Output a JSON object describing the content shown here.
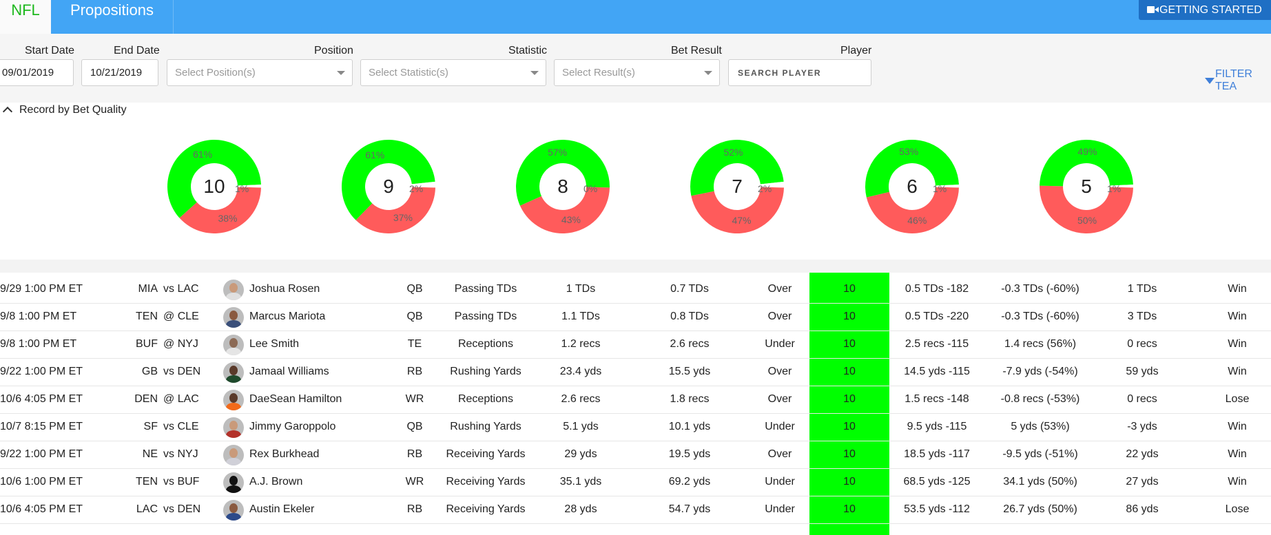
{
  "nav": {
    "tabs": [
      {
        "label": "NFL"
      },
      {
        "label": "Propositions"
      }
    ],
    "getting_started": "GETTING STARTED"
  },
  "filters": {
    "start_date": {
      "label": "Start Date",
      "value": "09/01/2019"
    },
    "end_date": {
      "label": "End Date",
      "value": "10/21/2019"
    },
    "position": {
      "label": "Position",
      "placeholder": "Select Position(s)"
    },
    "statistic": {
      "label": "Statistic",
      "placeholder": "Select Statistic(s)"
    },
    "bet_result": {
      "label": "Bet Result",
      "placeholder": "Select Result(s)"
    },
    "player": {
      "label": "Player",
      "placeholder": "SEARCH PLAYER"
    },
    "filter_team": "FILTER TEA"
  },
  "record": {
    "title": "Record by Bet Quality",
    "colors": {
      "win": "#00ff00",
      "lose": "#ff5b5b",
      "push": "#ffffff"
    },
    "charts": [
      {
        "quality": "10",
        "win": 61,
        "lose": 38,
        "push": 1,
        "win_label": "61%",
        "lose_label": "38%",
        "push_label": "1%"
      },
      {
        "quality": "9",
        "win": 61,
        "lose": 37,
        "push": 2,
        "win_label": "61%",
        "lose_label": "37%",
        "push_label": "2%"
      },
      {
        "quality": "8",
        "win": 57,
        "lose": 43,
        "push": 0,
        "win_label": "57%",
        "lose_label": "43%",
        "push_label": "0%"
      },
      {
        "quality": "7",
        "win": 52,
        "lose": 47,
        "push": 2,
        "win_label": "52%",
        "lose_label": "47%",
        "push_label": "2%"
      },
      {
        "quality": "6",
        "win": 53,
        "lose": 46,
        "push": 1,
        "win_label": "53%",
        "lose_label": "46%",
        "push_label": "1%"
      },
      {
        "quality": "5",
        "win": 49,
        "lose": 50,
        "push": 1,
        "win_label": "49%",
        "lose_label": "50%",
        "push_label": "1%"
      }
    ]
  },
  "table": {
    "rows": [
      {
        "date": "9/29 1:00 PM ET",
        "team": "MIA",
        "opp": "vs LAC",
        "player": "Joshua Rosen",
        "pos": "QB",
        "stat": "Passing TDs",
        "projection": "1 TDs",
        "avg": "0.7 TDs",
        "pick": "Over",
        "quality": "10",
        "line": "0.5 TDs -182",
        "edge": "-0.3 TDs (-60%)",
        "actual": "1 TDs",
        "result": "Win",
        "jersey": "#e0e0e0",
        "skin": "#c99a7a"
      },
      {
        "date": "9/8 1:00 PM ET",
        "team": "TEN",
        "opp": "@ CLE",
        "player": "Marcus Mariota",
        "pos": "QB",
        "stat": "Passing TDs",
        "projection": "1.1 TDs",
        "avg": "0.8 TDs",
        "pick": "Over",
        "quality": "10",
        "line": "0.5 TDs -220",
        "edge": "-0.3 TDs (-60%)",
        "actual": "3 TDs",
        "result": "Win",
        "jersey": "#3a4f7a",
        "skin": "#8a5a40"
      },
      {
        "date": "9/8 1:00 PM ET",
        "team": "BUF",
        "opp": "@ NYJ",
        "player": "Lee Smith",
        "pos": "TE",
        "stat": "Receptions",
        "projection": "1.2 recs",
        "avg": "2.6 recs",
        "pick": "Under",
        "quality": "10",
        "line": "2.5 recs -115",
        "edge": "1.4 recs (56%)",
        "actual": "0 recs",
        "result": "Win",
        "jersey": "#e5e5e5",
        "skin": "#8c6a55"
      },
      {
        "date": "9/22 1:00 PM ET",
        "team": "GB",
        "opp": "vs DEN",
        "player": "Jamaal Williams",
        "pos": "RB",
        "stat": "Rushing Yards",
        "projection": "23.4 yds",
        "avg": "15.5 yds",
        "pick": "Over",
        "quality": "10",
        "line": "14.5 yds -115",
        "edge": "-7.9 yds (-54%)",
        "actual": "59 yds",
        "result": "Win",
        "jersey": "#1f4a2c",
        "skin": "#5a3a2a"
      },
      {
        "date": "10/6 4:05 PM ET",
        "team": "DEN",
        "opp": "@ LAC",
        "player": "DaeSean Hamilton",
        "pos": "WR",
        "stat": "Receptions",
        "projection": "2.6 recs",
        "avg": "1.8 recs",
        "pick": "Over",
        "quality": "10",
        "line": "1.5 recs -148",
        "edge": "-0.8 recs (-53%)",
        "actual": "0 recs",
        "result": "Lose",
        "jersey": "#f26a1b",
        "skin": "#5a3a2a"
      },
      {
        "date": "10/7 8:15 PM ET",
        "team": "SF",
        "opp": "vs CLE",
        "player": "Jimmy Garoppolo",
        "pos": "QB",
        "stat": "Rushing Yards",
        "projection": "5.1 yds",
        "avg": "10.1 yds",
        "pick": "Under",
        "quality": "10",
        "line": "9.5 yds -115",
        "edge": "5 yds (53%)",
        "actual": "-3 yds",
        "result": "Win",
        "jersey": "#b3312a",
        "skin": "#c99a7a"
      },
      {
        "date": "9/22 1:00 PM ET",
        "team": "NE",
        "opp": "vs NYJ",
        "player": "Rex Burkhead",
        "pos": "RB",
        "stat": "Receiving Yards",
        "projection": "29 yds",
        "avg": "19.5 yds",
        "pick": "Over",
        "quality": "10",
        "line": "18.5 yds -117",
        "edge": "-9.5 yds (-51%)",
        "actual": "22 yds",
        "result": "Win",
        "jersey": "#d0d0d8",
        "skin": "#c99a7a"
      },
      {
        "date": "10/6 1:00 PM ET",
        "team": "TEN",
        "opp": "vs BUF",
        "player": "A.J. Brown",
        "pos": "WR",
        "stat": "Receiving Yards",
        "projection": "35.1 yds",
        "avg": "69.2 yds",
        "pick": "Under",
        "quality": "10",
        "line": "68.5 yds -125",
        "edge": "34.1 yds (50%)",
        "actual": "27 yds",
        "result": "Win",
        "jersey": "#111111",
        "skin": "#111111"
      },
      {
        "date": "10/6 4:05 PM ET",
        "team": "LAC",
        "opp": "vs DEN",
        "player": "Austin Ekeler",
        "pos": "RB",
        "stat": "Receiving Yards",
        "projection": "28 yds",
        "avg": "54.7 yds",
        "pick": "Under",
        "quality": "10",
        "line": "53.5 yds -112",
        "edge": "26.7 yds (50%)",
        "actual": "86 yds",
        "result": "Lose",
        "jersey": "#2c4a8a",
        "skin": "#8a5a40"
      }
    ]
  }
}
